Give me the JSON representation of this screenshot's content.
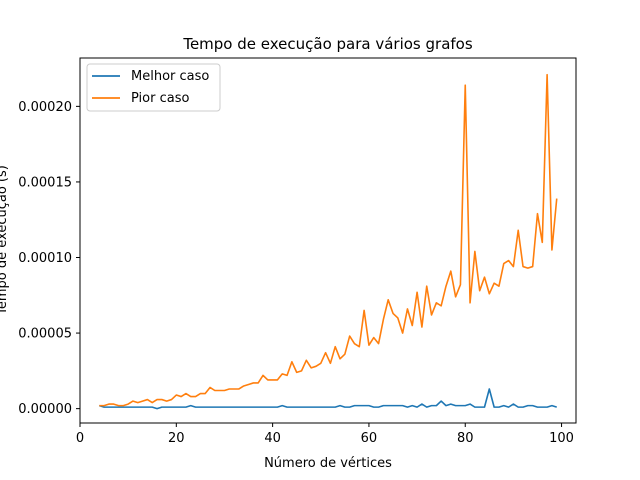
{
  "chart_data": {
    "type": "line",
    "title": "Tempo de execução para vários grafos",
    "xlabel": "Número de vértices",
    "ylabel": "Tempo de execução (s)",
    "xlim": [
      0,
      103
    ],
    "ylim": [
      -9.5e-06,
      0.000232
    ],
    "xticks": [
      0,
      20,
      40,
      60,
      80,
      100
    ],
    "xtick_labels": [
      "0",
      "20",
      "40",
      "60",
      "80",
      "100"
    ],
    "yticks": [
      0,
      5e-05,
      0.0001,
      0.00015,
      0.0002
    ],
    "ytick_labels": [
      "0.00000",
      "0.00005",
      "0.00010",
      "0.00015",
      "0.00020"
    ],
    "grid": false,
    "legend_position": "upper-left",
    "x": [
      4,
      5,
      6,
      7,
      8,
      9,
      10,
      11,
      12,
      13,
      14,
      15,
      16,
      17,
      18,
      19,
      20,
      21,
      22,
      23,
      24,
      25,
      26,
      27,
      28,
      29,
      30,
      31,
      32,
      33,
      34,
      35,
      36,
      37,
      38,
      39,
      40,
      41,
      42,
      43,
      44,
      45,
      46,
      47,
      48,
      49,
      50,
      51,
      52,
      53,
      54,
      55,
      56,
      57,
      58,
      59,
      60,
      61,
      62,
      63,
      64,
      65,
      66,
      67,
      68,
      69,
      70,
      71,
      72,
      73,
      74,
      75,
      76,
      77,
      78,
      79,
      80,
      81,
      82,
      83,
      84,
      85,
      86,
      87,
      88,
      89,
      90,
      91,
      92,
      93,
      94,
      95,
      96,
      97,
      98,
      99
    ],
    "series": [
      {
        "name": "Melhor caso",
        "color": "#1f77b4",
        "values": [
          2e-06,
          1e-06,
          1e-06,
          1e-06,
          1e-06,
          1e-06,
          1e-06,
          1e-06,
          1e-06,
          1e-06,
          1e-06,
          1e-06,
          0,
          1e-06,
          1e-06,
          1e-06,
          1e-06,
          1e-06,
          1e-06,
          2e-06,
          1e-06,
          1e-06,
          1e-06,
          1e-06,
          1e-06,
          1e-06,
          1e-06,
          1e-06,
          1e-06,
          1e-06,
          1e-06,
          1e-06,
          1e-06,
          1e-06,
          1e-06,
          1e-06,
          1e-06,
          1e-06,
          2e-06,
          1e-06,
          1e-06,
          1e-06,
          1e-06,
          1e-06,
          1e-06,
          1e-06,
          1e-06,
          1e-06,
          1e-06,
          1e-06,
          2e-06,
          1e-06,
          1e-06,
          2e-06,
          2e-06,
          2e-06,
          2e-06,
          1e-06,
          1e-06,
          2e-06,
          2e-06,
          2e-06,
          2e-06,
          2e-06,
          1e-06,
          2e-06,
          1e-06,
          3e-06,
          1e-06,
          2e-06,
          2e-06,
          5e-06,
          2e-06,
          3e-06,
          2e-06,
          2e-06,
          2e-06,
          3e-06,
          1e-06,
          1e-06,
          1e-06,
          1.3e-05,
          1e-06,
          1e-06,
          2e-06,
          1e-06,
          3e-06,
          1e-06,
          1e-06,
          2e-06,
          2e-06,
          1e-06,
          1e-06,
          1e-06,
          2e-06,
          1e-06
        ]
      },
      {
        "name": "Pior caso",
        "color": "#ff7f0e",
        "values": [
          2e-06,
          2e-06,
          3e-06,
          3e-06,
          2e-06,
          2e-06,
          3e-06,
          5e-06,
          4e-06,
          5e-06,
          6e-06,
          4e-06,
          6e-06,
          6e-06,
          5e-06,
          6e-06,
          9e-06,
          8e-06,
          1e-05,
          8e-06,
          8e-06,
          1e-05,
          1e-05,
          1.4e-05,
          1.2e-05,
          1.2e-05,
          1.2e-05,
          1.3e-05,
          1.3e-05,
          1.3e-05,
          1.5e-05,
          1.6e-05,
          1.7e-05,
          1.7e-05,
          2.2e-05,
          1.9e-05,
          1.9e-05,
          1.9e-05,
          2.3e-05,
          2.2e-05,
          3.1e-05,
          2.4e-05,
          2.5e-05,
          3.2e-05,
          2.7e-05,
          2.8e-05,
          3e-05,
          3.7e-05,
          3e-05,
          4.1e-05,
          3.3e-05,
          3.6e-05,
          4.8e-05,
          4.3e-05,
          4.1e-05,
          6.5e-05,
          4.2e-05,
          4.7e-05,
          4.3e-05,
          5.9e-05,
          7.2e-05,
          6.3e-05,
          6e-05,
          5e-05,
          6.6e-05,
          5.5e-05,
          7.7e-05,
          5.4e-05,
          8.1e-05,
          6.2e-05,
          7e-05,
          6.8e-05,
          8.1e-05,
          9.1e-05,
          7.4e-05,
          8.2e-05,
          0.000214,
          7e-05,
          0.000104,
          7.8e-05,
          8.7e-05,
          7.6e-05,
          8.3e-05,
          8.1e-05,
          9.6e-05,
          9.8e-05,
          9.4e-05,
          0.000118,
          9.4e-05,
          9.3e-05,
          9.4e-05,
          0.000129,
          0.00011,
          0.000221,
          0.000105,
          0.000139
        ]
      }
    ]
  }
}
